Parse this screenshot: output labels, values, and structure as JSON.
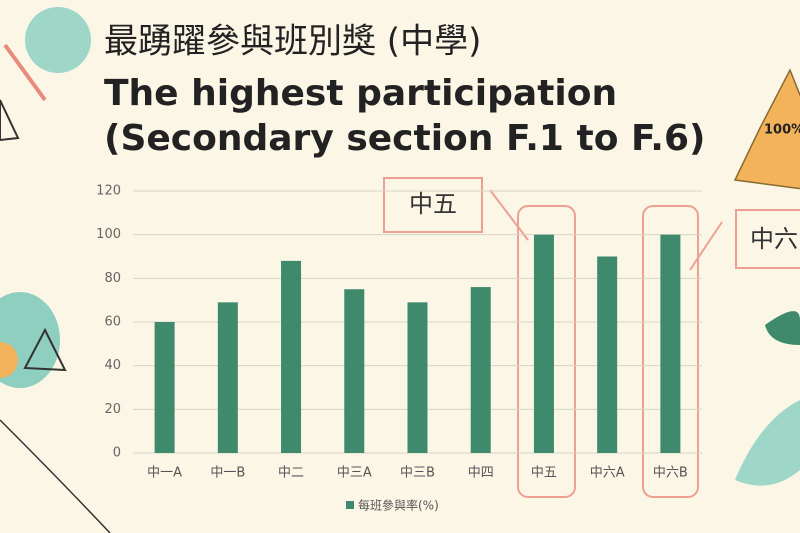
{
  "chart_data": {
    "type": "bar",
    "title": "最踴躍參與班別獎 (中學)",
    "subtitle": [
      "The highest participation",
      "(Secondary section F.1 to F.6)"
    ],
    "categories": [
      "中一A",
      "中一B",
      "中二",
      "中三A",
      "中三B",
      "中四",
      "中五",
      "中六A",
      "中六B"
    ],
    "series": [
      {
        "name": "每班參與率(%)",
        "color": "#3f8a6c",
        "values": [
          60,
          69,
          88,
          75,
          69,
          76,
          100,
          90,
          100
        ]
      }
    ],
    "ylim": [
      0,
      120
    ],
    "yticks": [
      0,
      20,
      40,
      60,
      80,
      100,
      120
    ],
    "grid": true,
    "legend": "bottom",
    "annotations": [
      "中五",
      "中六",
      "100%"
    ]
  }
}
